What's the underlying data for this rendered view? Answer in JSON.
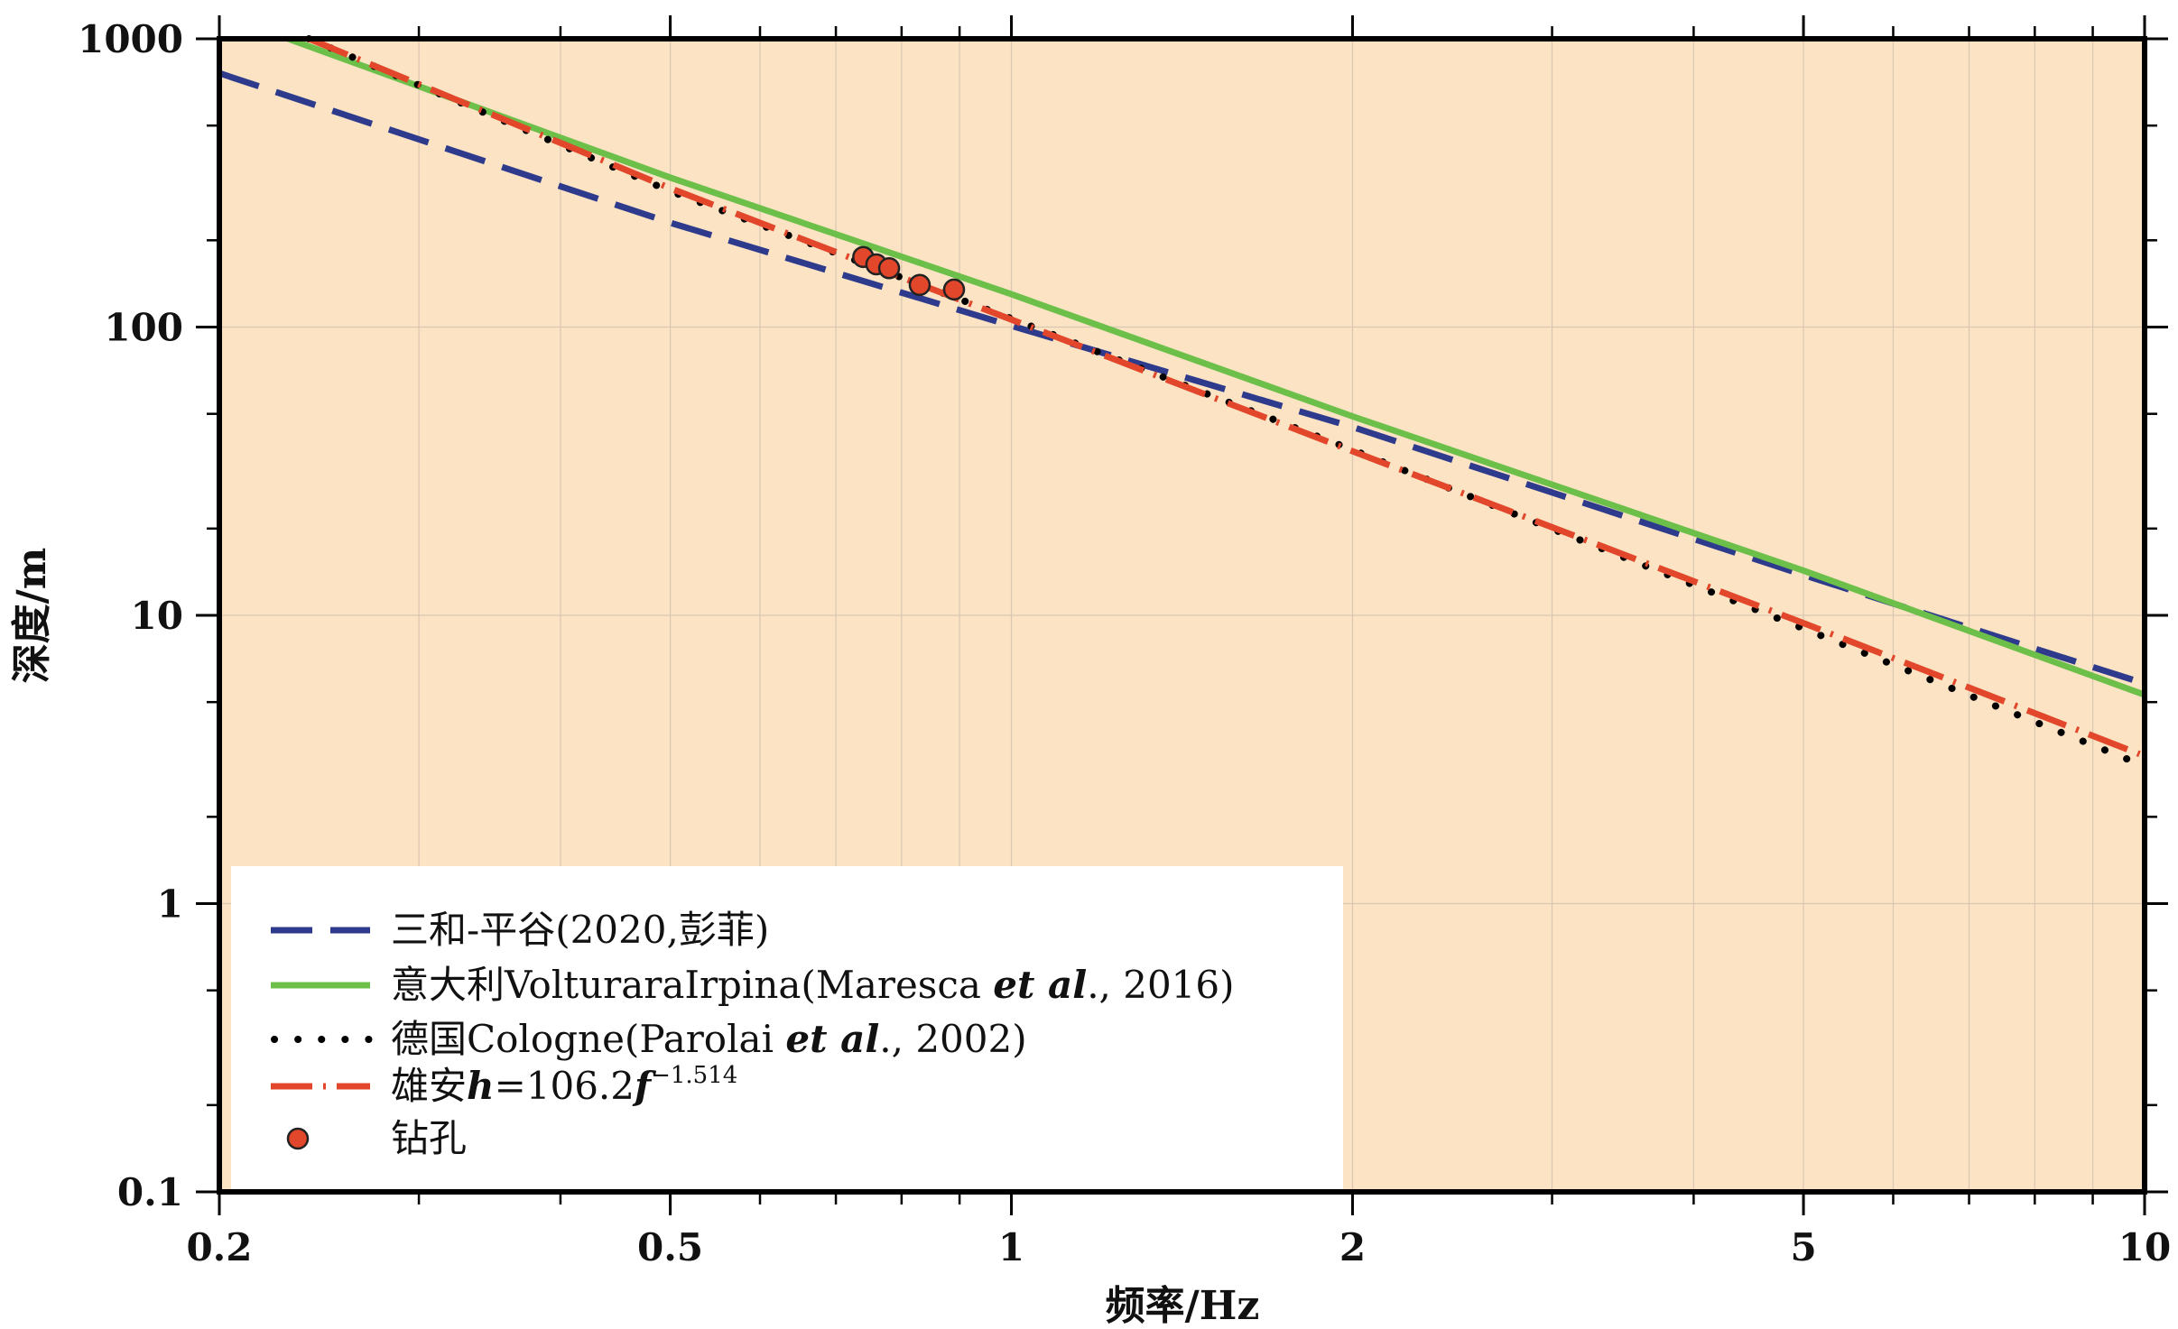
{
  "chart_data": {
    "type": "line",
    "xlabel": "频率/Hz",
    "ylabel": "深度/m",
    "xscale": "log",
    "yscale": "log",
    "xlim": [
      0.2,
      10
    ],
    "ylim": [
      0.1,
      1000
    ],
    "x_ticks": [
      0.2,
      0.5,
      1,
      2,
      5,
      10
    ],
    "x_tick_labels": [
      "0.2",
      "0.5",
      "1",
      "2",
      "5",
      "10"
    ],
    "y_ticks": [
      0.1,
      1,
      10,
      100,
      1000
    ],
    "y_tick_labels": [
      "0.1",
      "1",
      "10",
      "100",
      "1000"
    ],
    "grid": true,
    "legend_position": "bottom-left",
    "colors": {
      "background": "#fbe3c4",
      "grid": "#d9c7b2",
      "frame": "#000000"
    },
    "series": [
      {
        "name": "三和-平谷(2020,彭菲)",
        "style": "dashed",
        "color": "#2e3a8c",
        "x": [
          0.2,
          0.5,
          1,
          2,
          5,
          10
        ],
        "y": [
          760,
          230,
          101,
          45,
          13.8,
          5.8
        ]
      },
      {
        "name_parts": [
          "意大利VolturaraIrpina(Maresca ",
          "et al",
          "., 2016)"
        ],
        "style": "solid",
        "color": "#6cc04a",
        "x": [
          0.23,
          0.5,
          1,
          2,
          5,
          10
        ],
        "y": [
          1000,
          330,
          130,
          49,
          14.3,
          5.3
        ]
      },
      {
        "name_parts": [
          "德国Cologne(Parolai ",
          "et al",
          "., 2002)"
        ],
        "style": "dotted",
        "color": "#000000",
        "x": [
          0.24,
          0.5,
          1,
          2,
          5,
          10
        ],
        "y": [
          1000,
          296,
          107,
          37.5,
          9.0,
          3.0
        ]
      },
      {
        "name_parts": [
          "雄安",
          "h",
          "=106.2",
          "f",
          "−1.514"
        ],
        "style": "dashdot",
        "color": "#e2472b",
        "x": [
          0.24,
          0.5,
          1,
          2,
          5,
          9.9
        ],
        "y": [
          1000,
          303,
          106.2,
          37.1,
          9.4,
          3.3
        ]
      },
      {
        "name": "钻孔",
        "style": "marker",
        "color": "#e2472b",
        "x": [
          0.74,
          0.76,
          0.78,
          0.83,
          0.89
        ],
        "y": [
          175,
          165,
          160,
          140,
          135
        ]
      }
    ]
  }
}
